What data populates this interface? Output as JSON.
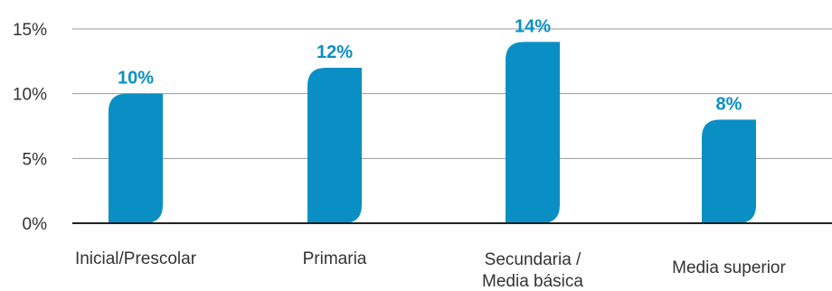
{
  "chart_data": {
    "type": "bar",
    "categories": [
      [
        "Inicial/Prescolar"
      ],
      [
        "Primaria"
      ],
      [
        "Secundaria /",
        "Media básica"
      ],
      [
        "Media superior"
      ]
    ],
    "values": [
      10,
      12,
      14,
      8
    ],
    "data_labels": [
      "10%",
      "12%",
      "14%",
      "8%"
    ],
    "yticks": [
      0,
      5,
      10,
      15
    ],
    "ytick_labels": [
      "0%",
      "5%",
      "10%",
      "15%"
    ],
    "ylim": [
      0,
      15
    ],
    "grid": true,
    "bar_color": "#0a8fc4",
    "label_color": "#0a8fc4",
    "axis_color": "#222222",
    "grid_color": "#9a9a9a"
  }
}
